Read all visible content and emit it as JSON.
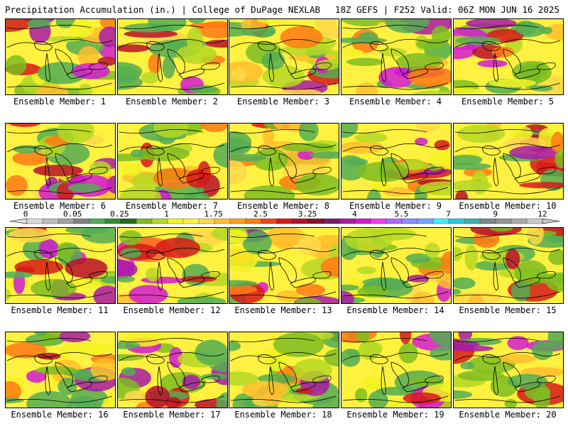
{
  "header": {
    "left": "Precipitation Accumulation (in.) | College of DuPage NEXLAB",
    "right": "18Z GEFS | F252 Valid: 06Z MON JUN 16 2025"
  },
  "colorbar": {
    "tick_labels": [
      "0",
      "0.05",
      "0.25",
      "1",
      "1.75",
      "2.5",
      "3.25",
      "4",
      "5.5",
      "7",
      "9",
      "12"
    ],
    "colors": [
      "#d9d9d9",
      "#bdbdbd",
      "#a0a0a0",
      "#828282",
      "#53ad53",
      "#2f8f2f",
      "#1f6e1f",
      "#7cbd21",
      "#b5d824",
      "#f3f322",
      "#fff13f",
      "#ffd84a",
      "#ffbe2e",
      "#ffa01c",
      "#ff7a14",
      "#f2451a",
      "#d61a1a",
      "#b80f2c",
      "#8c0f2c",
      "#7a1f6a",
      "#a81aa8",
      "#d41ad4",
      "#f23bf2",
      "#b266ff",
      "#8c8cff",
      "#6fa8ff",
      "#3cf0ff",
      "#28c8e0",
      "#3fb0b0",
      "#7a8a8a",
      "#969696",
      "#aaaaaa",
      "#c8c8c8"
    ]
  },
  "panels": [
    {
      "label": "Ensemble Member: 1"
    },
    {
      "label": "Ensemble Member: 2"
    },
    {
      "label": "Ensemble Member: 3"
    },
    {
      "label": "Ensemble Member: 4"
    },
    {
      "label": "Ensemble Member: 5"
    },
    {
      "label": "Ensemble Member: 6"
    },
    {
      "label": "Ensemble Member: 7"
    },
    {
      "label": "Ensemble Member: 8"
    },
    {
      "label": "Ensemble Member: 9"
    },
    {
      "label": "Ensemble Member: 10"
    },
    {
      "label": "Ensemble Member: 11"
    },
    {
      "label": "Ensemble Member: 12"
    },
    {
      "label": "Ensemble Member: 13"
    },
    {
      "label": "Ensemble Member: 14"
    },
    {
      "label": "Ensemble Member: 15"
    },
    {
      "label": "Ensemble Member: 16"
    },
    {
      "label": "Ensemble Member: 17"
    },
    {
      "label": "Ensemble Member: 18"
    },
    {
      "label": "Ensemble Member: 19"
    },
    {
      "label": "Ensemble Member: 20"
    }
  ]
}
